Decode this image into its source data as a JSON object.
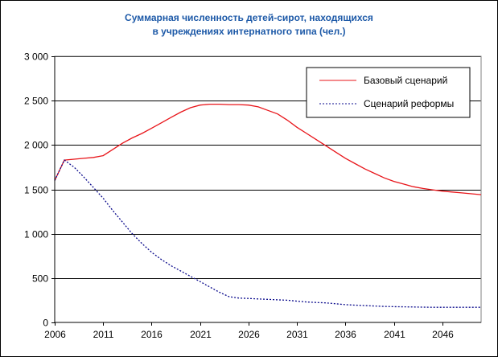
{
  "chart_data": {
    "type": "line",
    "title_lines": [
      "Суммарная численность детей-сирот, находящихся",
      "в учреждениях интернатного типа (чел.)"
    ],
    "title_color": "#1e5aa8",
    "xlabel": "",
    "ylabel": "",
    "xlim": [
      2006,
      2050
    ],
    "ylim": [
      0,
      3000
    ],
    "x_ticks": [
      2006,
      2011,
      2016,
      2021,
      2026,
      2031,
      2036,
      2041,
      2046
    ],
    "y_ticks": [
      0,
      500,
      1000,
      1500,
      2000,
      2500,
      3000
    ],
    "y_tick_labels": [
      "0",
      "500",
      "1 000",
      "1 500",
      "2 000",
      "2 500",
      "3 000"
    ],
    "grid": "horizontal",
    "legend_position": "top-right",
    "series": [
      {
        "name": "Базовый сценарий",
        "color": "#e8151a",
        "line_style": "solid",
        "x": [
          2006,
          2007,
          2008,
          2009,
          2010,
          2011,
          2012,
          2013,
          2014,
          2015,
          2016,
          2017,
          2018,
          2019,
          2020,
          2021,
          2022,
          2023,
          2024,
          2025,
          2026,
          2027,
          2028,
          2029,
          2030,
          2031,
          2032,
          2033,
          2034,
          2035,
          2036,
          2037,
          2038,
          2039,
          2040,
          2041,
          2042,
          2043,
          2044,
          2045,
          2046,
          2047,
          2048,
          2049,
          2050
        ],
        "values": [
          1600,
          1830,
          1840,
          1850,
          1860,
          1880,
          1950,
          2020,
          2080,
          2130,
          2190,
          2250,
          2310,
          2370,
          2420,
          2450,
          2460,
          2460,
          2455,
          2455,
          2450,
          2430,
          2390,
          2350,
          2280,
          2200,
          2130,
          2060,
          1990,
          1920,
          1850,
          1790,
          1730,
          1680,
          1630,
          1590,
          1560,
          1530,
          1510,
          1495,
          1480,
          1470,
          1460,
          1450,
          1440
        ]
      },
      {
        "name": "Сценарий реформы",
        "color": "#0a0a8c",
        "line_style": "dotted",
        "x": [
          2006,
          2007,
          2008,
          2009,
          2010,
          2011,
          2012,
          2013,
          2014,
          2015,
          2016,
          2017,
          2018,
          2019,
          2020,
          2021,
          2022,
          2023,
          2024,
          2025,
          2026,
          2027,
          2028,
          2029,
          2030,
          2031,
          2032,
          2033,
          2034,
          2035,
          2036,
          2037,
          2038,
          2039,
          2040,
          2041,
          2042,
          2043,
          2044,
          2045,
          2046,
          2047,
          2048,
          2049,
          2050
        ],
        "values": [
          1600,
          1830,
          1750,
          1640,
          1520,
          1400,
          1260,
          1130,
          1000,
          890,
          790,
          710,
          640,
          580,
          520,
          460,
          400,
          340,
          290,
          275,
          270,
          265,
          260,
          255,
          250,
          240,
          230,
          225,
          220,
          210,
          200,
          195,
          190,
          185,
          180,
          178,
          176,
          174,
          172,
          170,
          170,
          170,
          170,
          170,
          170
        ]
      }
    ]
  }
}
